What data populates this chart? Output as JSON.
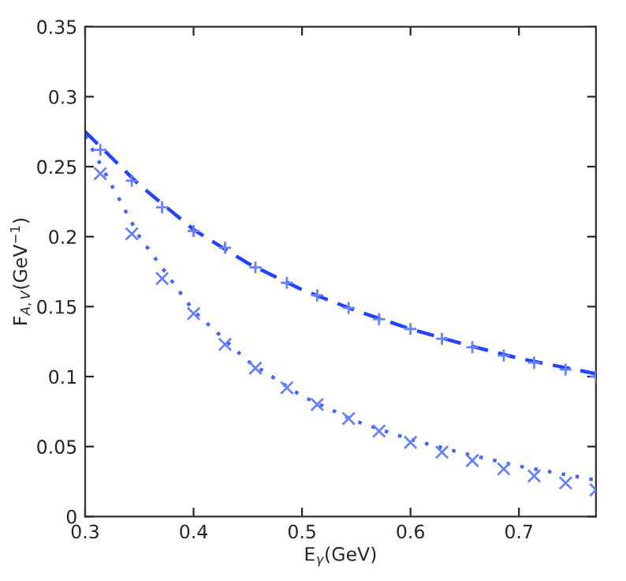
{
  "chart_data": {
    "type": "line",
    "xlabel": "E$_{γ}$(GeV)",
    "ylabel": "F$_{A,V}$(GeV$^{−1}$)",
    "xlim": [
      0.3,
      0.771
    ],
    "ylim": [
      0,
      0.35
    ],
    "xticks": [
      0.3,
      0.4,
      0.5,
      0.6,
      0.7
    ],
    "yticks": [
      0,
      0.05,
      0.1,
      0.15,
      0.2,
      0.25,
      0.3,
      0.35
    ],
    "grid": false,
    "legend": false,
    "series": [
      {
        "line_style": "dashed",
        "marker": "none",
        "color": "#2244ff",
        "x": [
          0.3,
          0.35,
          0.4,
          0.45,
          0.5,
          0.55,
          0.6,
          0.65,
          0.7,
          0.771
        ],
        "values": [
          0.275,
          0.237,
          0.205,
          0.181,
          0.162,
          0.147,
          0.134,
          0.123,
          0.113,
          0.102
        ]
      },
      {
        "line_style": "dotted",
        "marker": "none",
        "color": "#4466ff",
        "x": [
          0.3,
          0.35,
          0.4,
          0.45,
          0.5,
          0.55,
          0.6,
          0.65,
          0.7,
          0.771
        ],
        "values": [
          0.272,
          0.2,
          0.147,
          0.111,
          0.086,
          0.068,
          0.055,
          0.045,
          0.036,
          0.026
        ]
      },
      {
        "type": "scatter",
        "marker": "plus",
        "color": "#6a80ff",
        "x": [
          0.314,
          0.343,
          0.371,
          0.4,
          0.429,
          0.457,
          0.486,
          0.514,
          0.543,
          0.571,
          0.6,
          0.629,
          0.657,
          0.686,
          0.714,
          0.743,
          0.771
        ],
        "values": [
          0.262,
          0.24,
          0.221,
          0.204,
          0.192,
          0.178,
          0.167,
          0.158,
          0.149,
          0.141,
          0.134,
          0.127,
          0.121,
          0.115,
          0.11,
          0.105,
          0.1
        ]
      },
      {
        "type": "scatter",
        "marker": "cross",
        "color": "#6a80ff",
        "x": [
          0.314,
          0.343,
          0.371,
          0.4,
          0.429,
          0.457,
          0.486,
          0.514,
          0.543,
          0.571,
          0.6,
          0.629,
          0.657,
          0.686,
          0.714,
          0.743,
          0.771
        ],
        "values": [
          0.245,
          0.202,
          0.17,
          0.145,
          0.123,
          0.106,
          0.092,
          0.08,
          0.07,
          0.061,
          0.053,
          0.046,
          0.04,
          0.034,
          0.029,
          0.024,
          0.019
        ]
      }
    ]
  }
}
